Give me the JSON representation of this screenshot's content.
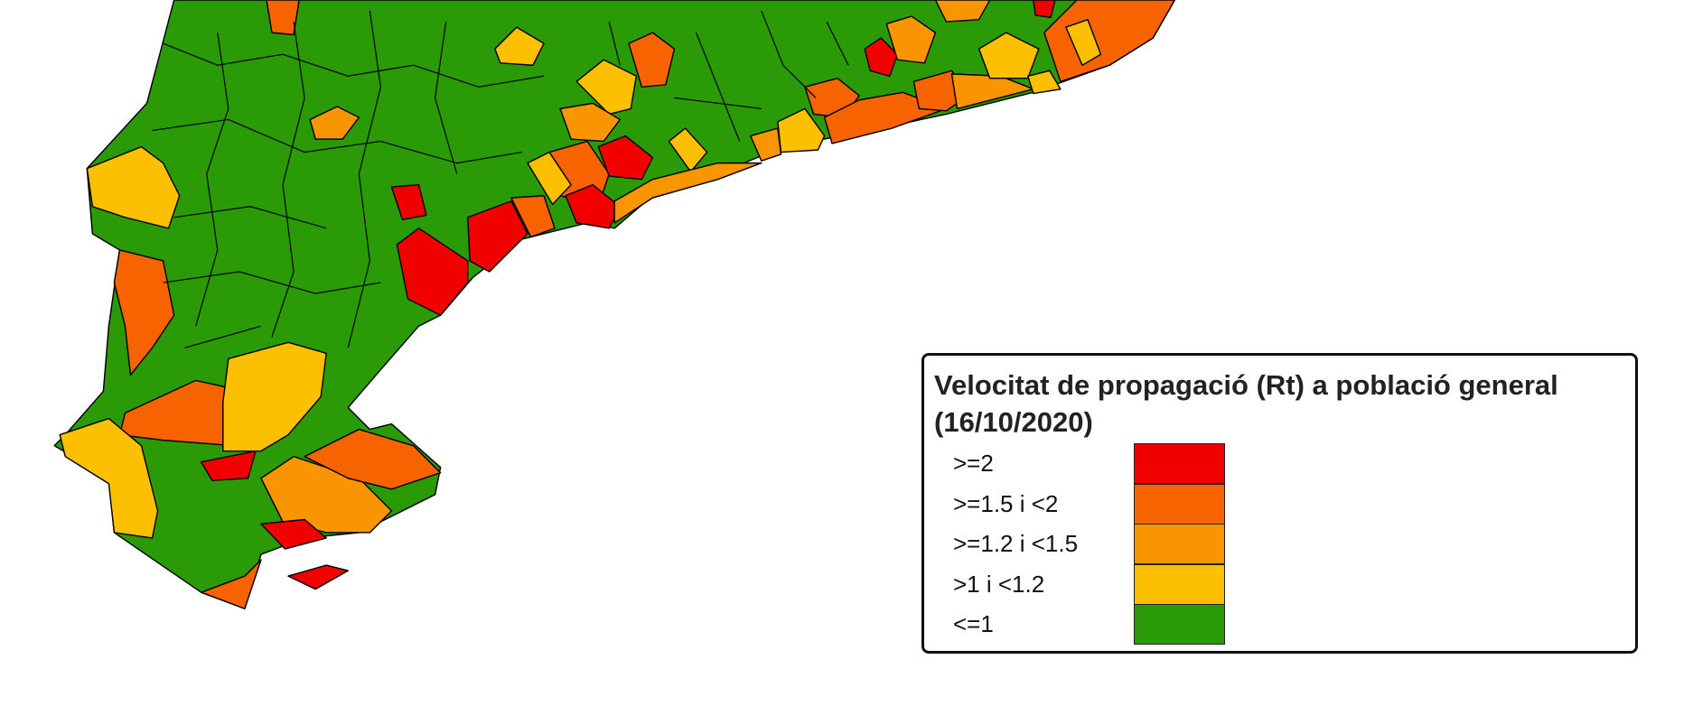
{
  "legend": {
    "title": "Velocitat de propagació (Rt) a població general (16/10/2020)",
    "items": [
      {
        "label": ">=2",
        "color": "#f20000"
      },
      {
        "label": ">=1.5 i <2",
        "color": "#f76300"
      },
      {
        "label": ">=1.2 i <1.5",
        "color": "#f99500"
      },
      {
        "label": ">1 i <1.2",
        "color": "#fcc000"
      },
      {
        "label": "<=1",
        "color": "#2a9a06"
      }
    ]
  }
}
